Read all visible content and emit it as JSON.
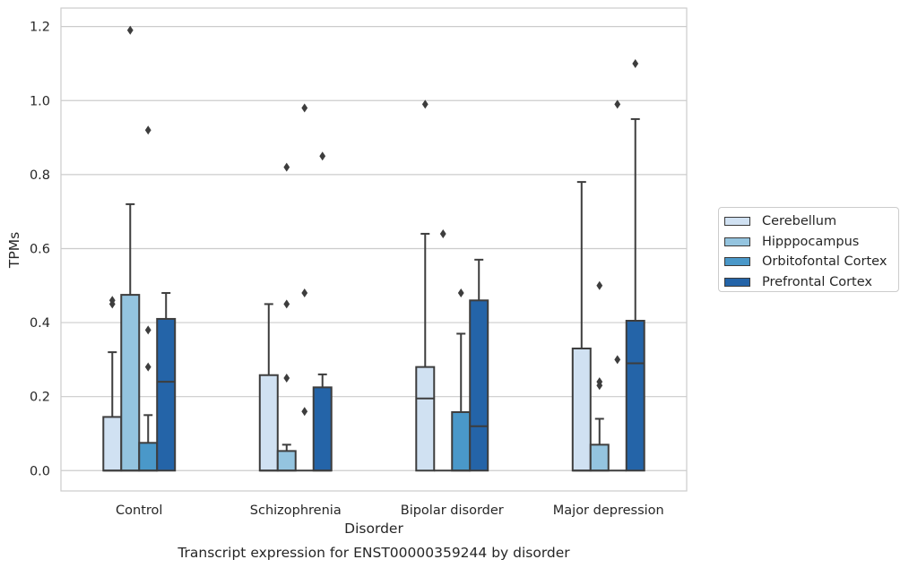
{
  "chart_data": {
    "type": "box",
    "title": "Transcript expression for ENST00000359244 by disorder",
    "xlabel": "Disorder",
    "ylabel": "TPMs",
    "ylim": [
      -0.055,
      1.25
    ],
    "yticks": [
      "0.0",
      "0.2",
      "0.4",
      "0.6",
      "0.8",
      "1.0",
      "1.2"
    ],
    "grid": true,
    "legend_position": "right",
    "categories": [
      "Control",
      "Schizophrenia",
      "Bipolar disorder",
      "Major depression"
    ],
    "series": [
      {
        "name": "Cerebellum",
        "color": "#d0e1f2",
        "boxes": [
          {
            "q1": 0,
            "median": 0,
            "q3": 0.145,
            "whisker_low": 0,
            "whisker_high": 0.32,
            "outliers": [
              0.45,
              0.46
            ]
          },
          {
            "q1": 0,
            "median": 0,
            "q3": 0.258,
            "whisker_low": 0,
            "whisker_high": 0.45,
            "outliers": []
          },
          {
            "q1": 0,
            "median": 0.195,
            "q3": 0.28,
            "whisker_low": 0,
            "whisker_high": 0.64,
            "outliers": [
              0.99
            ]
          },
          {
            "q1": 0,
            "median": 0,
            "q3": 0.33,
            "whisker_low": 0,
            "whisker_high": 0.78,
            "outliers": []
          }
        ]
      },
      {
        "name": "Hipppocampus",
        "color": "#94c4df",
        "boxes": [
          {
            "q1": 0,
            "median": 0,
            "q3": 0.475,
            "whisker_low": 0,
            "whisker_high": 0.72,
            "outliers": [
              1.19
            ]
          },
          {
            "q1": 0,
            "median": 0,
            "q3": 0.053,
            "whisker_low": 0,
            "whisker_high": 0.07,
            "outliers": [
              0.25,
              0.45,
              0.82
            ]
          },
          {
            "q1": 0,
            "median": 0,
            "q3": 0,
            "whisker_low": 0,
            "whisker_high": 0,
            "outliers": [
              0.64
            ]
          },
          {
            "q1": 0,
            "median": 0,
            "q3": 0.07,
            "whisker_low": 0,
            "whisker_high": 0.14,
            "outliers": [
              0.23,
              0.24,
              0.5
            ]
          }
        ]
      },
      {
        "name": "Orbitofontal Cortex",
        "color": "#4a98c9",
        "boxes": [
          {
            "q1": 0,
            "median": 0,
            "q3": 0.075,
            "whisker_low": 0,
            "whisker_high": 0.15,
            "outliers": [
              0.28,
              0.38,
              0.92
            ]
          },
          {
            "q1": 0,
            "median": 0,
            "q3": 0,
            "whisker_low": 0,
            "whisker_high": 0,
            "outliers": [
              0.16,
              0.48,
              0.98
            ]
          },
          {
            "q1": 0,
            "median": 0,
            "q3": 0.158,
            "whisker_low": 0,
            "whisker_high": 0.37,
            "outliers": [
              0.48
            ]
          },
          {
            "q1": 0,
            "median": 0,
            "q3": 0,
            "whisker_low": 0,
            "whisker_high": 0,
            "outliers": [
              0.3,
              0.99
            ]
          }
        ]
      },
      {
        "name": "Prefrontal Cortex",
        "color": "#2464a8",
        "boxes": [
          {
            "q1": 0,
            "median": 0.24,
            "q3": 0.41,
            "whisker_low": 0,
            "whisker_high": 0.48,
            "outliers": []
          },
          {
            "q1": 0,
            "median": 0,
            "q3": 0.225,
            "whisker_low": 0,
            "whisker_high": 0.26,
            "outliers": [
              0.85
            ]
          },
          {
            "q1": 0,
            "median": 0.12,
            "q3": 0.46,
            "whisker_low": 0,
            "whisker_high": 0.57,
            "outliers": []
          },
          {
            "q1": 0,
            "median": 0.29,
            "q3": 0.405,
            "whisker_low": 0,
            "whisker_high": 0.95,
            "outliers": [
              1.1
            ]
          }
        ]
      }
    ]
  }
}
